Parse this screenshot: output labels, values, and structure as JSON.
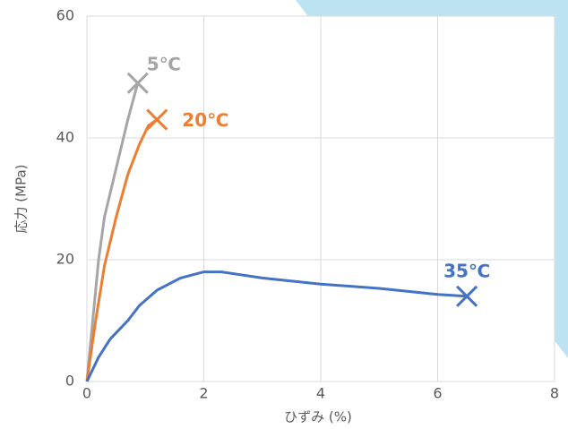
{
  "chart_data": {
    "type": "line",
    "xlabel": "ひずみ (%)",
    "ylabel": "応力 (MPa)",
    "xlim": [
      0,
      8
    ],
    "xticks": [
      0,
      2,
      4,
      6,
      8
    ],
    "ylim": [
      0,
      60
    ],
    "yticks": [
      0,
      20,
      40,
      60
    ],
    "grid": true,
    "series": [
      {
        "name": "5℃",
        "color": "#a5a5a5",
        "x": [
          0,
          0.1,
          0.2,
          0.3,
          0.5,
          0.7,
          0.87
        ],
        "values": [
          0,
          10,
          20,
          27,
          35,
          43,
          49
        ]
      },
      {
        "name": "20℃",
        "color": "#ed7d31",
        "x": [
          0,
          0.15,
          0.3,
          0.5,
          0.7,
          0.9,
          1.05,
          1.2
        ],
        "values": [
          0,
          10,
          19,
          27,
          34,
          39,
          42,
          43
        ]
      },
      {
        "name": "35℃",
        "color": "#4472c4",
        "x": [
          0,
          0.2,
          0.4,
          0.7,
          0.9,
          1.2,
          1.6,
          2,
          2.3,
          3,
          4,
          5,
          6,
          6.5
        ],
        "values": [
          0,
          4,
          7,
          10,
          12.5,
          15,
          17,
          18,
          18,
          17,
          16,
          15.3,
          14.3,
          14
        ]
      }
    ]
  }
}
